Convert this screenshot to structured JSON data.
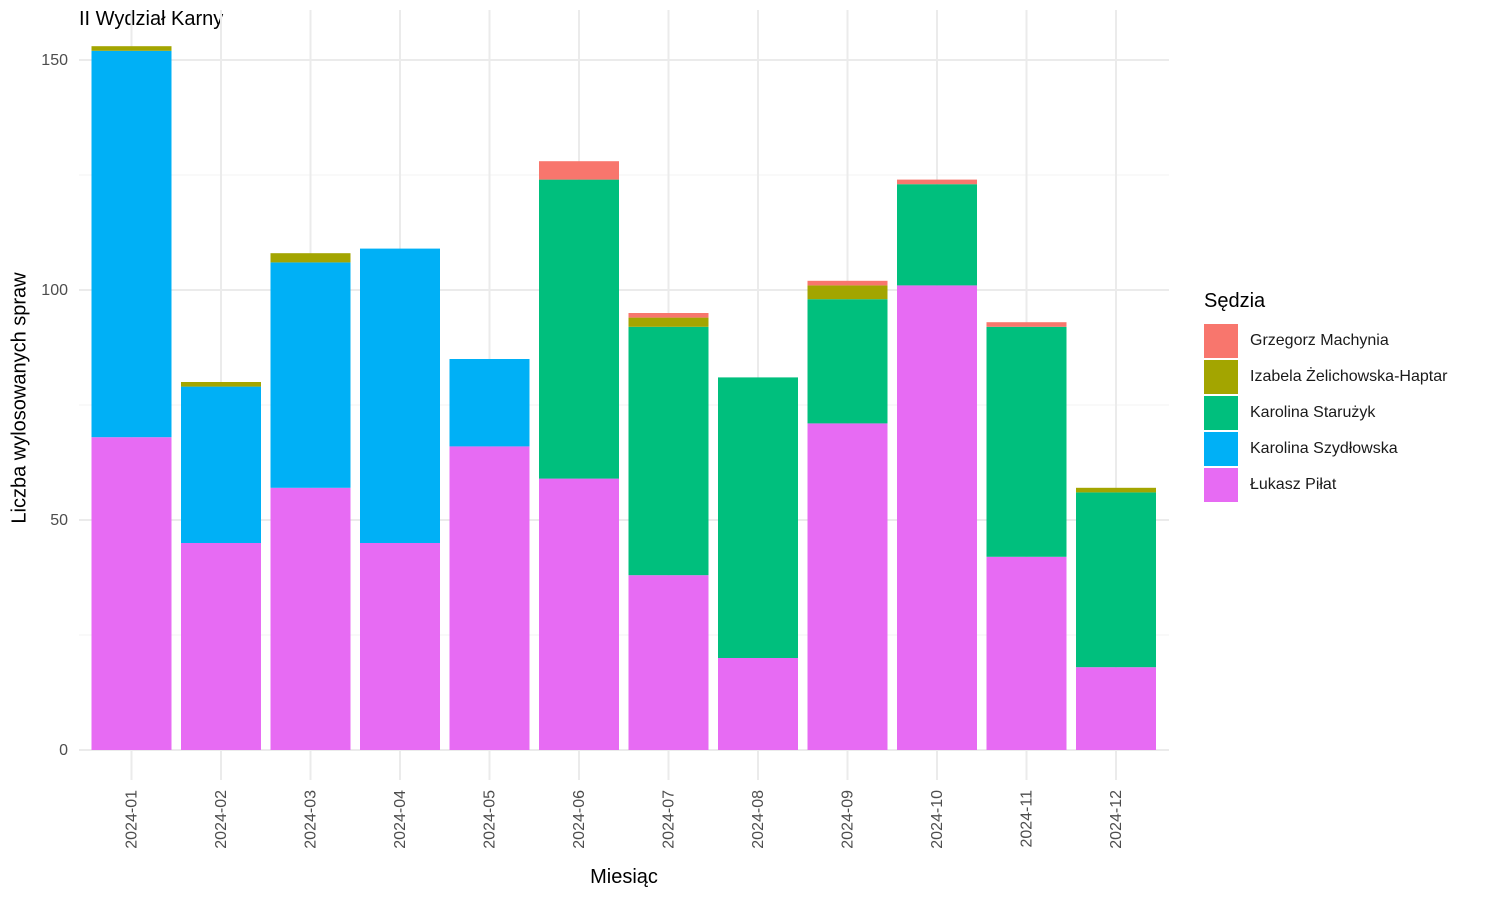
{
  "chart_data": {
    "type": "bar",
    "stacked": true,
    "title": "II Wydział Karny",
    "xlabel": "Miesiąc",
    "ylabel": "Liczba wylosowanych spraw",
    "ylim": [
      0,
      153
    ],
    "y_ticks": [
      0,
      50,
      100,
      150
    ],
    "grid": true,
    "legend_title": "Sędzia",
    "legend_position": "right",
    "categories": [
      "2024-01",
      "2024-02",
      "2024-03",
      "2024-04",
      "2024-05",
      "2024-06",
      "2024-07",
      "2024-08",
      "2024-09",
      "2024-10",
      "2024-11",
      "2024-12"
    ],
    "series": [
      {
        "name": "Łukasz Piłat",
        "color": "#E76BF3",
        "values": [
          68,
          45,
          57,
          45,
          66,
          59,
          38,
          20,
          71,
          101,
          42,
          18
        ]
      },
      {
        "name": "Karolina Szydłowska",
        "color": "#00B0F6",
        "values": [
          84,
          34,
          49,
          64,
          19,
          0,
          0,
          0,
          0,
          0,
          0,
          0
        ]
      },
      {
        "name": "Karolina Starużyk",
        "color": "#00BF7D",
        "values": [
          0,
          0,
          0,
          0,
          0,
          65,
          54,
          61,
          27,
          22,
          50,
          38
        ]
      },
      {
        "name": "Izabela Żelichowska-Haptar",
        "color": "#A3A500",
        "values": [
          1,
          1,
          2,
          0,
          0,
          0,
          2,
          0,
          3,
          0,
          0,
          1
        ]
      },
      {
        "name": "Grzegorz Machynia",
        "color": "#F8766D",
        "values": [
          0,
          0,
          0,
          0,
          0,
          4,
          1,
          0,
          1,
          1,
          1,
          0
        ]
      }
    ],
    "legend_order": [
      "Grzegorz Machynia",
      "Izabela Żelichowska-Haptar",
      "Karolina Starużyk",
      "Karolina Szydłowska",
      "Łukasz Piłat"
    ]
  }
}
